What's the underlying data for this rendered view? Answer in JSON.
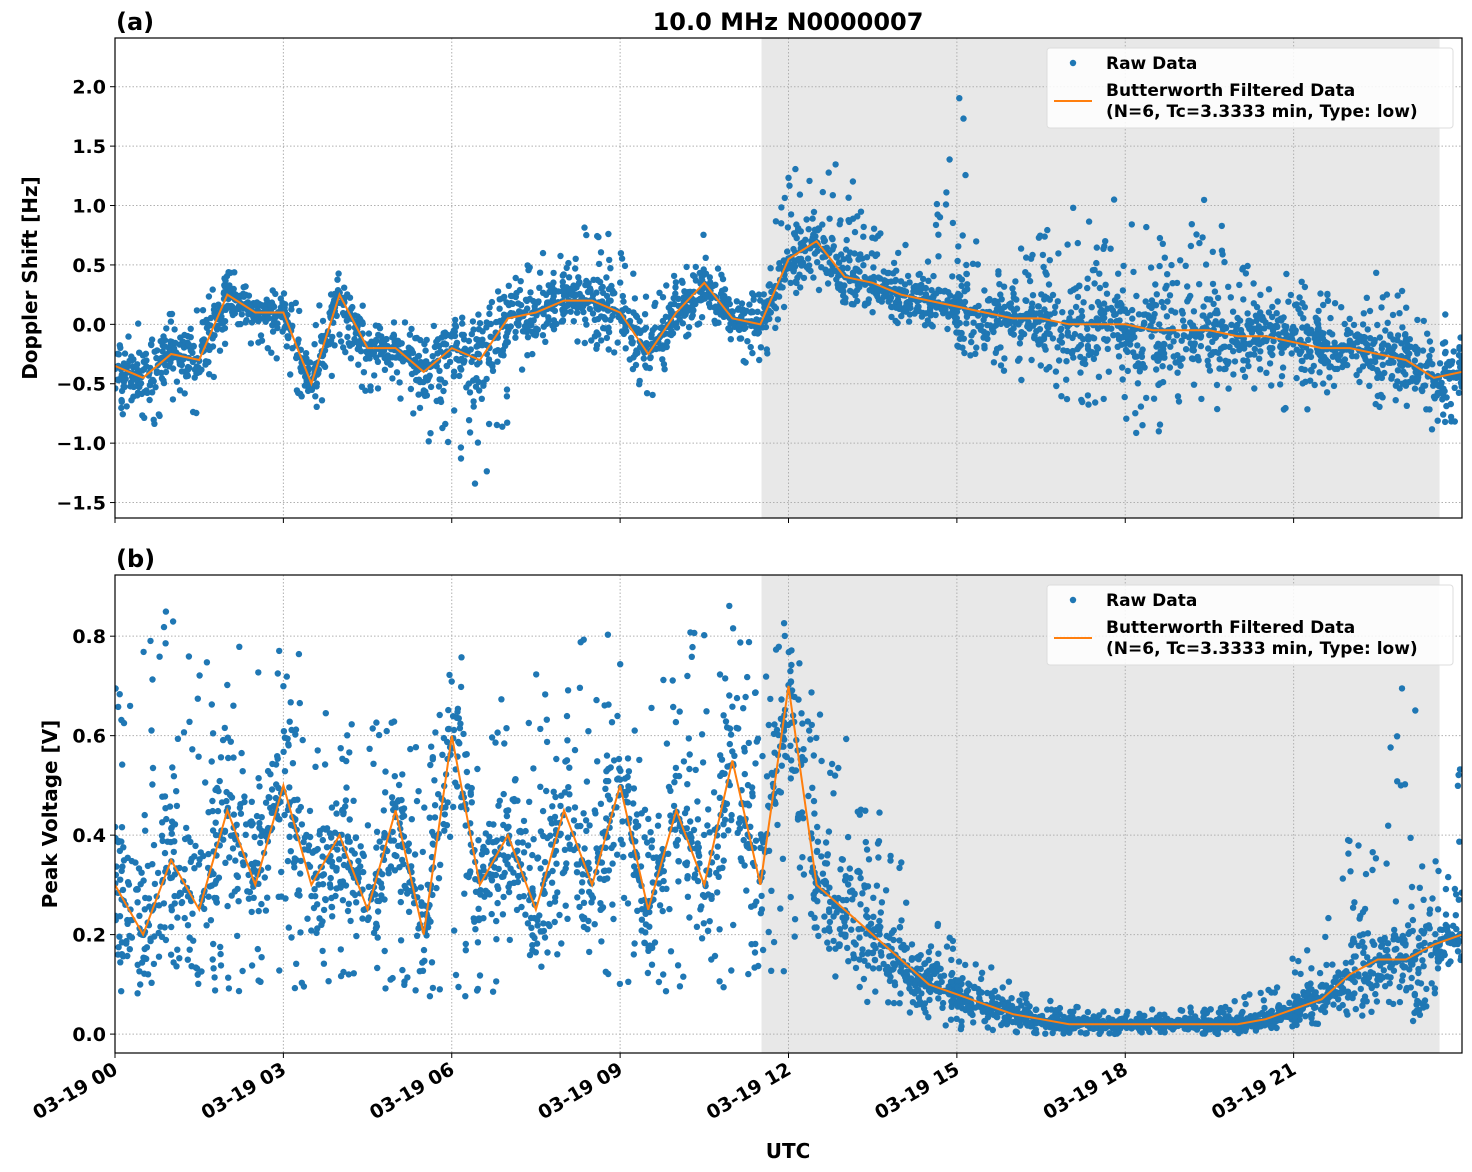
{
  "title": "10.0 MHz N0000007",
  "xlabel": "UTC",
  "colors": {
    "raw": "#1f77b4",
    "filtered": "#ff7f0e",
    "shade": "#e8e8e8",
    "grid": "#b0b0b0"
  },
  "legend": {
    "raw": "Raw Data",
    "filtered_line1": "Butterworth Filtered Data",
    "filtered_line2": "(N=6, Tc=3.3333 min, Type: low)",
    "placement": "top-right"
  },
  "x_tick_labels": [
    "03-19 00",
    "03-19 03",
    "03-19 06",
    "03-19 09",
    "03-19 12",
    "03-19 15",
    "03-19 18",
    "03-19 21"
  ],
  "x_ticks_hours": [
    0,
    3,
    6,
    9,
    12,
    15,
    18,
    21
  ],
  "xlim_hours": [
    0,
    24
  ],
  "shaded_span_hours": [
    11.52,
    23.6
  ],
  "chart_data": [
    {
      "type": "scatter+line",
      "panel_label": "(a)",
      "ylabel": "Doppler Shift [Hz]",
      "ylim": [
        -1.63,
        2.41
      ],
      "y_ticks": [
        -1.5,
        -1.0,
        -0.5,
        0.0,
        0.5,
        1.0,
        1.5,
        2.0
      ],
      "y_tick_labels": [
        "−1.5",
        "−1.0",
        "−0.5",
        "0.0",
        "0.5",
        "1.0",
        "1.5",
        "2.0"
      ],
      "grid": true,
      "x_hours": [
        0,
        0.5,
        1,
        1.5,
        2,
        2.5,
        3,
        3.5,
        4,
        4.5,
        5,
        5.5,
        6,
        6.5,
        7,
        7.5,
        8,
        8.5,
        9,
        9.5,
        10,
        10.5,
        11,
        11.5,
        12,
        12.5,
        13,
        13.5,
        14,
        14.5,
        15,
        15.5,
        16,
        16.5,
        17,
        17.5,
        18,
        18.5,
        19,
        19.5,
        20,
        20.5,
        21,
        21.5,
        22,
        22.5,
        23,
        23.5,
        24
      ],
      "filtered": [
        -0.35,
        -0.45,
        -0.25,
        -0.3,
        0.25,
        0.1,
        0.1,
        -0.5,
        0.25,
        -0.2,
        -0.2,
        -0.4,
        -0.2,
        -0.3,
        0.05,
        0.1,
        0.2,
        0.2,
        0.1,
        -0.25,
        0.1,
        0.35,
        0.05,
        0.0,
        0.55,
        0.7,
        0.4,
        0.35,
        0.25,
        0.2,
        0.15,
        0.1,
        0.05,
        0.05,
        0.0,
        0.0,
        0.0,
        -0.05,
        -0.05,
        -0.05,
        -0.1,
        -0.1,
        -0.15,
        -0.2,
        -0.2,
        -0.25,
        -0.3,
        -0.45,
        -0.4
      ],
      "raw_min": [
        -0.75,
        -1.05,
        -0.7,
        -0.8,
        -0.15,
        -0.2,
        -0.35,
        -0.85,
        -0.3,
        -0.6,
        -0.55,
        -1.0,
        -1.45,
        -1.45,
        -0.85,
        -0.35,
        -0.1,
        -0.2,
        -0.3,
        -0.65,
        -0.3,
        0.05,
        -0.25,
        -0.45,
        0.2,
        0.3,
        0.15,
        0.1,
        0.0,
        -0.05,
        -0.1,
        -0.2,
        -0.6,
        -0.5,
        -0.7,
        -0.7,
        -0.8,
        -1.15,
        -0.7,
        -0.8,
        -0.6,
        -0.5,
        -0.9,
        -0.6,
        -0.55,
        -0.7,
        -0.75,
        -0.9,
        -0.95
      ],
      "raw_max": [
        0.05,
        0.0,
        0.2,
        0.15,
        0.5,
        0.3,
        0.3,
        0.1,
        0.45,
        0.1,
        0.05,
        0.0,
        0.0,
        0.15,
        0.35,
        0.6,
        0.6,
        0.95,
        0.7,
        0.2,
        0.45,
        0.8,
        0.25,
        0.3,
        1.65,
        1.25,
        1.45,
        0.85,
        0.7,
        0.55,
        2.23,
        0.5,
        0.6,
        0.8,
        1.18,
        0.75,
        1.28,
        0.9,
        0.8,
        1.15,
        0.6,
        0.5,
        0.4,
        0.3,
        0.2,
        0.5,
        0.25,
        0.25,
        0.1
      ]
    },
    {
      "type": "scatter+line",
      "panel_label": "(b)",
      "ylabel": "Peak Voltage [V]",
      "ylim": [
        -0.038,
        0.923
      ],
      "y_ticks": [
        0.0,
        0.2,
        0.4,
        0.6,
        0.8
      ],
      "y_tick_labels": [
        "0.0",
        "0.2",
        "0.4",
        "0.6",
        "0.8"
      ],
      "grid": true,
      "x_hours": [
        0,
        0.5,
        1,
        1.5,
        2,
        2.5,
        3,
        3.5,
        4,
        4.5,
        5,
        5.5,
        6,
        6.5,
        7,
        7.5,
        8,
        8.5,
        9,
        9.5,
        10,
        10.5,
        11,
        11.5,
        12,
        12.5,
        13,
        13.5,
        14,
        14.5,
        15,
        15.5,
        16,
        16.5,
        17,
        17.5,
        18,
        18.5,
        19,
        19.5,
        20,
        20.5,
        21,
        21.5,
        22,
        22.5,
        23,
        23.5,
        24
      ],
      "filtered": [
        0.3,
        0.2,
        0.35,
        0.25,
        0.45,
        0.3,
        0.5,
        0.3,
        0.4,
        0.25,
        0.45,
        0.2,
        0.6,
        0.3,
        0.4,
        0.25,
        0.45,
        0.3,
        0.5,
        0.25,
        0.45,
        0.3,
        0.55,
        0.3,
        0.7,
        0.3,
        0.25,
        0.2,
        0.15,
        0.1,
        0.08,
        0.06,
        0.04,
        0.03,
        0.02,
        0.02,
        0.02,
        0.02,
        0.02,
        0.02,
        0.02,
        0.03,
        0.05,
        0.07,
        0.12,
        0.15,
        0.15,
        0.18,
        0.2
      ],
      "raw_min": [
        0.05,
        0.06,
        0.07,
        0.08,
        0.08,
        0.07,
        0.1,
        0.08,
        0.1,
        0.1,
        0.08,
        0.05,
        0.06,
        0.07,
        0.07,
        0.06,
        0.08,
        0.07,
        0.06,
        0.08,
        0.08,
        0.08,
        0.09,
        0.1,
        0.12,
        0.1,
        0.08,
        0.06,
        0.04,
        0.02,
        0.01,
        0.01,
        0.0,
        0.0,
        0.0,
        0.0,
        0.0,
        0.0,
        0.0,
        0.0,
        0.0,
        0.01,
        0.01,
        0.02,
        0.03,
        0.04,
        0.04,
        0.05,
        0.05
      ],
      "raw_max": [
        0.72,
        0.82,
        0.86,
        0.76,
        0.83,
        0.85,
        0.82,
        0.73,
        0.68,
        0.66,
        0.63,
        0.67,
        0.82,
        0.7,
        0.69,
        0.8,
        0.75,
        0.82,
        0.83,
        0.72,
        0.82,
        0.86,
        0.87,
        0.8,
        0.88,
        0.68,
        0.65,
        0.5,
        0.35,
        0.25,
        0.18,
        0.15,
        0.1,
        0.08,
        0.06,
        0.05,
        0.05,
        0.05,
        0.05,
        0.07,
        0.08,
        0.1,
        0.18,
        0.2,
        0.42,
        0.4,
        0.83,
        0.35,
        0.6
      ]
    }
  ]
}
